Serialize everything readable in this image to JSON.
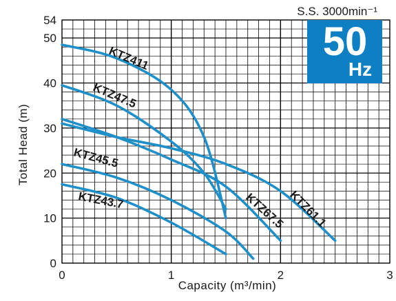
{
  "chart_data": {
    "type": "line",
    "speed_note": "S.S. 3000min⁻¹",
    "frequency_badge": {
      "value": "50",
      "unit": "Hz",
      "color": "#0e7fc2"
    },
    "xlabel": "Capacity (m³/min)",
    "ylabel": "Total Head (m)",
    "xlim": [
      0,
      3
    ],
    "ylim": [
      0,
      54
    ],
    "x_ticks": [
      "0",
      "1",
      "2",
      "3"
    ],
    "y_ticks": [
      "0",
      "10",
      "20",
      "30",
      "40",
      "50",
      "54"
    ],
    "grid": true,
    "curve_color": "#1e8fc8",
    "series": [
      {
        "name": "KTZ411",
        "points": [
          [
            0,
            48.5
          ],
          [
            0.5,
            45.5
          ],
          [
            1.0,
            38.5
          ],
          [
            1.3,
            28.0
          ],
          [
            1.5,
            10.0
          ]
        ]
      },
      {
        "name": "KTZ47.5",
        "points": [
          [
            0,
            39.5
          ],
          [
            0.5,
            35.0
          ],
          [
            1.0,
            27.0
          ],
          [
            1.3,
            20.0
          ],
          [
            1.5,
            12.0
          ]
        ]
      },
      {
        "name": "KTZ61.1",
        "points": [
          [
            0,
            31.0
          ],
          [
            0.5,
            28.0
          ],
          [
            1.0,
            25.5
          ],
          [
            1.5,
            22.0
          ],
          [
            2.0,
            16.0
          ],
          [
            2.5,
            5.0
          ]
        ]
      },
      {
        "name": "KTZ67.5",
        "points": [
          [
            0,
            32.0
          ],
          [
            0.5,
            28.0
          ],
          [
            1.0,
            23.0
          ],
          [
            1.5,
            17.0
          ],
          [
            2.0,
            5.0
          ]
        ]
      },
      {
        "name": "KTZ45.5",
        "points": [
          [
            0,
            22.0
          ],
          [
            0.5,
            19.0
          ],
          [
            1.0,
            14.0
          ],
          [
            1.5,
            7.0
          ],
          [
            1.75,
            1.0
          ]
        ]
      },
      {
        "name": "KTZ43.7",
        "points": [
          [
            0,
            17.5
          ],
          [
            0.5,
            14.5
          ],
          [
            1.0,
            9.0
          ],
          [
            1.5,
            2.0
          ]
        ]
      }
    ]
  }
}
